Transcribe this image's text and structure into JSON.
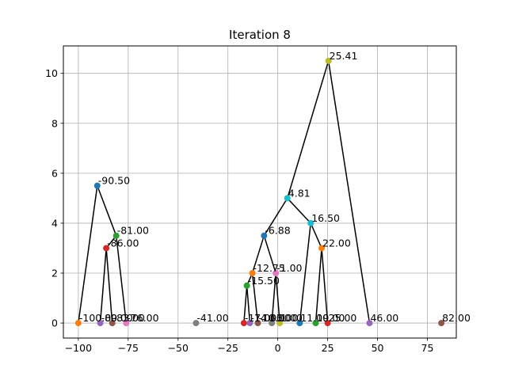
{
  "chart_data": {
    "type": "scatter",
    "title": "Iteration 8",
    "xlabel": "",
    "ylabel": "",
    "xlim": [
      -107.5,
      89.5
    ],
    "ylim": [
      -0.6,
      11.1
    ],
    "x_ticks": [
      -100,
      -75,
      -50,
      -25,
      0,
      25,
      50,
      75
    ],
    "y_ticks": [
      0,
      2,
      4,
      6,
      8,
      10
    ],
    "grid": true,
    "points": [
      {
        "x": -100,
        "y": 0,
        "label": "-100.00",
        "color": "#ff7f0e"
      },
      {
        "x": -89,
        "y": 0,
        "label": "-89.00",
        "color": "#9467bd"
      },
      {
        "x": -83,
        "y": 0,
        "label": "-83.00",
        "color": "#8c564b"
      },
      {
        "x": -76,
        "y": 0,
        "label": "-76.00",
        "color": "#e377c2"
      },
      {
        "x": -41,
        "y": 0,
        "label": "-41.00",
        "color": "#7f7f7f"
      },
      {
        "x": -17,
        "y": 0,
        "label": "-17.00",
        "color": "#d62728"
      },
      {
        "x": -14,
        "y": 0,
        "label": "-14.00",
        "color": "#9467bd"
      },
      {
        "x": -10,
        "y": 0,
        "label": "-10.00",
        "color": "#8c564b"
      },
      {
        "x": -3,
        "y": 0,
        "label": "-3.00",
        "color": "#7f7f7f"
      },
      {
        "x": 1,
        "y": 0,
        "label": "1.00",
        "color": "#bcbd22"
      },
      {
        "x": 11,
        "y": 0,
        "label": "11.00",
        "color": "#1f77b4"
      },
      {
        "x": 19,
        "y": 0,
        "label": "19.00",
        "color": "#2ca02c"
      },
      {
        "x": 25,
        "y": 0,
        "label": "25.00",
        "color": "#d62728"
      },
      {
        "x": 46,
        "y": 0,
        "label": "46.00",
        "color": "#9467bd"
      },
      {
        "x": 82,
        "y": 0,
        "label": "82.00",
        "color": "#8c564b"
      },
      {
        "x": -90.5,
        "y": 5.5,
        "label": "-90.50",
        "color": "#1f77b4"
      },
      {
        "x": -81,
        "y": 3.5,
        "label": "-81.00",
        "color": "#2ca02c"
      },
      {
        "x": -86,
        "y": 3,
        "label": "-86.00",
        "color": "#d62728"
      },
      {
        "x": 4.81,
        "y": 5,
        "label": "4.81",
        "color": "#17becf"
      },
      {
        "x": -6.88,
        "y": 3.5,
        "label": "-6.88",
        "color": "#1f77b4"
      },
      {
        "x": 16.5,
        "y": 4,
        "label": "16.50",
        "color": "#17becf"
      },
      {
        "x": 22,
        "y": 3,
        "label": "22.00",
        "color": "#ff7f0e"
      },
      {
        "x": -12.75,
        "y": 2,
        "label": "-12.75",
        "color": "#ff7f0e"
      },
      {
        "x": -1,
        "y": 2,
        "label": "-1.00",
        "color": "#e377c2"
      },
      {
        "x": -15.5,
        "y": 1.5,
        "label": "-15.50",
        "color": "#2ca02c"
      },
      {
        "x": 25.41,
        "y": 10.5,
        "label": "25.41",
        "color": "#bcbd22"
      }
    ],
    "edges": [
      [
        -90.5,
        5.5,
        -100,
        0
      ],
      [
        -90.5,
        5.5,
        -81,
        3.5
      ],
      [
        -81,
        3.5,
        -86,
        3
      ],
      [
        -81,
        3.5,
        -76,
        0
      ],
      [
        -86,
        3,
        -89,
        0
      ],
      [
        -86,
        3,
        -83,
        0
      ],
      [
        25.41,
        10.5,
        4.81,
        5
      ],
      [
        25.41,
        10.5,
        46,
        0
      ],
      [
        4.81,
        5,
        -6.88,
        3.5
      ],
      [
        4.81,
        5,
        16.5,
        4
      ],
      [
        -6.88,
        3.5,
        -12.75,
        2
      ],
      [
        -6.88,
        3.5,
        -1,
        2
      ],
      [
        -12.75,
        2,
        -15.5,
        1.5
      ],
      [
        -12.75,
        2,
        -10,
        0
      ],
      [
        -15.5,
        1.5,
        -17,
        0
      ],
      [
        -15.5,
        1.5,
        -14,
        0
      ],
      [
        -1,
        2,
        -3,
        0
      ],
      [
        -1,
        2,
        1,
        0
      ],
      [
        16.5,
        4,
        11,
        0
      ],
      [
        16.5,
        4,
        22,
        3
      ],
      [
        22,
        3,
        19,
        0
      ],
      [
        22,
        3,
        25,
        0
      ]
    ]
  }
}
